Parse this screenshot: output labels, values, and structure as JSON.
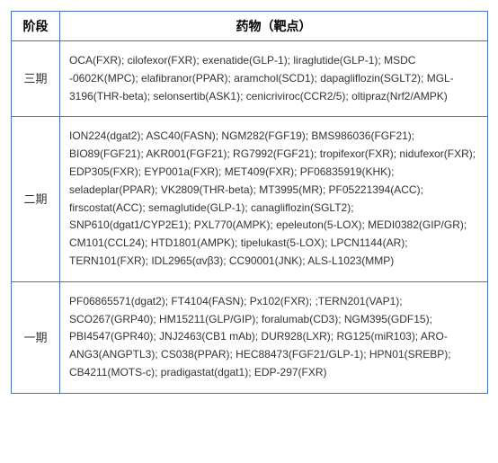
{
  "table": {
    "headers": {
      "phase": "阶段",
      "drugs": "药物（靶点）"
    },
    "rows": [
      {
        "phase": "三期",
        "drugs": "OCA(FXR); cilofexor(FXR); exenatide(GLP-1); liraglutide(GLP-1); MSDC -0602K(MPC); elafibranor(PPAR); aramchol(SCD1); dapagliflozin(SGLT2); MGL-3196(THR-beta); selonsertib(ASK1); cenicriviroc(CCR2/5); oltipraz(Nrf2/AMPK)"
      },
      {
        "phase": "二期",
        "drugs": "ION224(dgat2); ASC40(FASN); NGM282(FGF19); BMS986036(FGF21); BIO89(FGF21); AKR001(FGF21); RG7992(FGF21); tropifexor(FXR); nidufexor(FXR); EDP305(FXR); EYP001a(FXR); MET409(FXR); PF06835919(KHK); seladeplar(PPAR); VK2809(THR-beta); MT3995(MR); PF05221394(ACC); firscostat(ACC); semaglutide(GLP-1); canagliflozin(SGLT2); SNP610(dgat1/CYP2E1); PXL770(AMPK); epeleuton(5-LOX); MEDI0382(GIP/GR); CM101(CCL24); HTD1801(AMPK); tipelukast(5-LOX); LPCN1144(AR); TERN101(FXR); IDL2965(αvβ3); CC90001(JNK); ALS-L1023(MMP)"
      },
      {
        "phase": "一期",
        "drugs": "PF06865571(dgat2); FT4104(FASN); Px102(FXR); ;TERN201(VAP1); SCO267(GRP40); HM15211(GLP/GIP); foralumab(CD3); NGM395(GDF15); PBI4547(GPR40); JNJ2463(CB1 mAb); DUR928(LXR); RG125(miR103); ARO-ANG3(ANGPTL3); CS038(PPAR); HEC88473(FGF21/GLP-1); HPN01(SREBP); CB4211(MOTS-c); pradigastat(dgat1); EDP-297(FXR)"
      }
    ],
    "style": {
      "border_color": "#4472c4",
      "header_bg": "#ffffff",
      "header_fontsize": 14,
      "cell_fontsize": 12,
      "phase_col_width": 54,
      "drugs_col_width": 476,
      "text_color": "#333333",
      "header_text_color": "#000000",
      "line_height": 1.65
    }
  }
}
